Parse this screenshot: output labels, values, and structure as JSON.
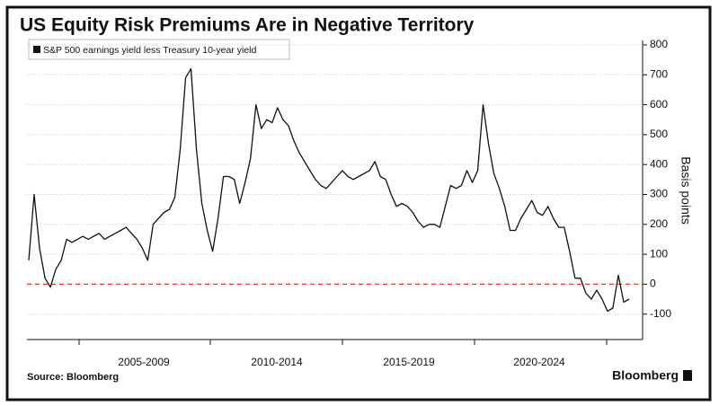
{
  "chart_data": {
    "type": "line",
    "title": "US Equity Risk Premiums Are in Negative Territory",
    "y_label": "Basis points",
    "source": "Source: Bloomberg",
    "brand": "Bloomberg",
    "x_labels": [
      "2005-2009",
      "2010-2014",
      "2015-2019",
      "2020-2024"
    ],
    "series": [
      {
        "name": "S&P 500 earnings yield less Treasury 10-year yield",
        "color": "#111111",
        "values": [
          80,
          300,
          120,
          20,
          -10,
          50,
          80,
          150,
          140,
          150,
          160,
          150,
          160,
          170,
          150,
          160,
          170,
          180,
          190,
          170,
          150,
          120,
          80,
          200,
          220,
          240,
          250,
          290,
          450,
          690,
          720,
          450,
          270,
          180,
          110,
          220,
          360,
          360,
          350,
          270,
          340,
          420,
          600,
          520,
          550,
          540,
          590,
          550,
          530,
          480,
          440,
          410,
          380,
          350,
          330,
          320,
          340,
          360,
          380,
          360,
          350,
          360,
          370,
          380,
          410,
          360,
          350,
          300,
          260,
          270,
          260,
          240,
          210,
          190,
          200,
          200,
          190,
          260,
          330,
          320,
          330,
          380,
          340,
          380,
          600,
          470,
          370,
          320,
          260,
          180,
          180,
          220,
          250,
          280,
          240,
          230,
          260,
          220,
          190,
          190,
          110,
          20,
          20,
          -30,
          -50,
          -20,
          -50,
          -90,
          -80,
          30,
          -60,
          -50
        ]
      }
    ],
    "ylim": [
      -185,
      815
    ],
    "yticks": [
      -100,
      0,
      100,
      200,
      300,
      400,
      500,
      600,
      700,
      800
    ],
    "grid": true,
    "hline": {
      "value": 0,
      "color": "#e03a3a"
    }
  }
}
